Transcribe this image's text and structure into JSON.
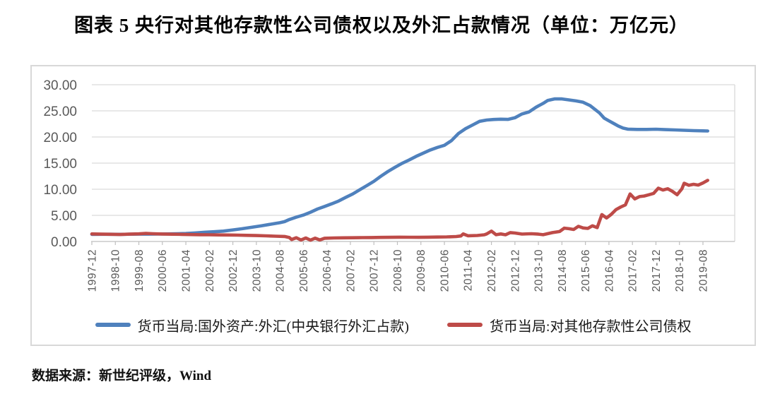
{
  "title": "图表 5  央行对其他存款性公司债权以及外汇占款情况（单位：万亿元）",
  "source_note": "数据来源：新世纪评级，Wind",
  "legend": {
    "items": [
      {
        "label": "货币当局:国外资产:外汇(中央银行外汇占款)",
        "color": "#4F81BD"
      },
      {
        "label": "货币当局:对其他存款性公司债权",
        "color": "#BE4B48"
      }
    ]
  },
  "colors": {
    "grid": "#d9d9d9",
    "axis": "#bfbfbf",
    "tick_text": "#595959",
    "series_fx": "#4F81BD",
    "series_claims": "#BE4B48",
    "border": "#d8d8d8"
  },
  "chart_data": {
    "type": "line",
    "title": "央行对其他存款性公司债权以及外汇占款情况",
    "unit": "万亿元",
    "xlabel": "",
    "ylabel": "",
    "ylim": [
      0,
      30
    ],
    "grid": true,
    "legend_position": "bottom",
    "y_ticks": [
      "30.00",
      "25.00",
      "20.00",
      "15.00",
      "10.00",
      "5.00",
      "0.00"
    ],
    "x_tick_labels": [
      "1997-12",
      "1998-10",
      "1999-08",
      "2000-06",
      "2001-04",
      "2002-02",
      "2002-12",
      "2003-10",
      "2004-08",
      "2005-06",
      "2006-04",
      "2007-02",
      "2007-12",
      "2008-10",
      "2009-08",
      "2010-06",
      "2011-04",
      "2012-02",
      "2012-12",
      "2013-10",
      "2014-08",
      "2015-06",
      "2016-04",
      "2017-02",
      "2017-12",
      "2018-10",
      "2019-08"
    ],
    "x_range_months": [
      "1997-12",
      "2019-10"
    ],
    "series": [
      {
        "name": "货币当局:国外资产:外汇(中央银行外汇占款)",
        "color": "#4F81BD",
        "points": [
          [
            "1997-12",
            1.36
          ],
          [
            "1998-04",
            1.38
          ],
          [
            "1998-08",
            1.39
          ],
          [
            "1998-12",
            1.37
          ],
          [
            "1999-04",
            1.39
          ],
          [
            "1999-08",
            1.4
          ],
          [
            "1999-12",
            1.41
          ],
          [
            "2000-04",
            1.43
          ],
          [
            "2000-08",
            1.45
          ],
          [
            "2000-12",
            1.47
          ],
          [
            "2001-04",
            1.53
          ],
          [
            "2001-08",
            1.63
          ],
          [
            "2001-12",
            1.77
          ],
          [
            "2002-04",
            1.87
          ],
          [
            "2002-08",
            1.99
          ],
          [
            "2002-12",
            2.21
          ],
          [
            "2003-04",
            2.45
          ],
          [
            "2003-08",
            2.72
          ],
          [
            "2003-12",
            2.98
          ],
          [
            "2004-04",
            3.3
          ],
          [
            "2004-08",
            3.6
          ],
          [
            "2004-10",
            3.8
          ],
          [
            "2004-12",
            4.2
          ],
          [
            "2005-03",
            4.65
          ],
          [
            "2005-06",
            5.05
          ],
          [
            "2005-09",
            5.6
          ],
          [
            "2005-12",
            6.21
          ],
          [
            "2006-03",
            6.7
          ],
          [
            "2006-06",
            7.2
          ],
          [
            "2006-09",
            7.75
          ],
          [
            "2006-12",
            8.43
          ],
          [
            "2007-03",
            9.1
          ],
          [
            "2007-06",
            9.9
          ],
          [
            "2007-09",
            10.7
          ],
          [
            "2007-12",
            11.52
          ],
          [
            "2008-03",
            12.5
          ],
          [
            "2008-06",
            13.4
          ],
          [
            "2008-09",
            14.2
          ],
          [
            "2008-12",
            14.96
          ],
          [
            "2009-03",
            15.6
          ],
          [
            "2009-06",
            16.3
          ],
          [
            "2009-09",
            16.9
          ],
          [
            "2009-12",
            17.52
          ],
          [
            "2010-03",
            18.0
          ],
          [
            "2010-06",
            18.4
          ],
          [
            "2010-09",
            19.3
          ],
          [
            "2010-12",
            20.68
          ],
          [
            "2011-03",
            21.6
          ],
          [
            "2011-06",
            22.3
          ],
          [
            "2011-09",
            23.0
          ],
          [
            "2011-12",
            23.24
          ],
          [
            "2012-03",
            23.35
          ],
          [
            "2012-06",
            23.4
          ],
          [
            "2012-09",
            23.37
          ],
          [
            "2012-12",
            23.67
          ],
          [
            "2013-03",
            24.4
          ],
          [
            "2013-06",
            24.8
          ],
          [
            "2013-09",
            25.7
          ],
          [
            "2013-12",
            26.43
          ],
          [
            "2014-02",
            27.0
          ],
          [
            "2014-05",
            27.3
          ],
          [
            "2014-08",
            27.28
          ],
          [
            "2014-11",
            27.1
          ],
          [
            "2015-02",
            26.9
          ],
          [
            "2015-05",
            26.65
          ],
          [
            "2015-08",
            26.0
          ],
          [
            "2015-10",
            25.3
          ],
          [
            "2015-12",
            24.6
          ],
          [
            "2016-02",
            23.6
          ],
          [
            "2016-04",
            23.1
          ],
          [
            "2016-06",
            22.6
          ],
          [
            "2016-08",
            22.1
          ],
          [
            "2016-10",
            21.7
          ],
          [
            "2016-12",
            21.5
          ],
          [
            "2017-04",
            21.45
          ],
          [
            "2017-08",
            21.45
          ],
          [
            "2017-12",
            21.48
          ],
          [
            "2018-04",
            21.4
          ],
          [
            "2018-08",
            21.35
          ],
          [
            "2018-12",
            21.28
          ],
          [
            "2019-04",
            21.22
          ],
          [
            "2019-08",
            21.18
          ],
          [
            "2019-10",
            21.15
          ]
        ]
      },
      {
        "name": "货币当局:对其他存款性公司债权",
        "color": "#BE4B48",
        "points": [
          [
            "1997-12",
            1.44
          ],
          [
            "1998-04",
            1.41
          ],
          [
            "1998-08",
            1.38
          ],
          [
            "1998-12",
            1.34
          ],
          [
            "1999-04",
            1.4
          ],
          [
            "1999-08",
            1.46
          ],
          [
            "1999-11",
            1.55
          ],
          [
            "2000-02",
            1.48
          ],
          [
            "2000-06",
            1.43
          ],
          [
            "2000-10",
            1.39
          ],
          [
            "2001-02",
            1.36
          ],
          [
            "2001-06",
            1.33
          ],
          [
            "2001-10",
            1.3
          ],
          [
            "2002-02",
            1.28
          ],
          [
            "2002-06",
            1.26
          ],
          [
            "2002-10",
            1.24
          ],
          [
            "2003-02",
            1.22
          ],
          [
            "2003-06",
            1.18
          ],
          [
            "2003-10",
            1.13
          ],
          [
            "2004-02",
            1.08
          ],
          [
            "2004-06",
            1.02
          ],
          [
            "2004-10",
            0.96
          ],
          [
            "2004-12",
            0.75
          ],
          [
            "2005-01",
            0.38
          ],
          [
            "2005-03",
            0.72
          ],
          [
            "2005-05",
            0.28
          ],
          [
            "2005-07",
            0.68
          ],
          [
            "2005-09",
            0.26
          ],
          [
            "2005-11",
            0.63
          ],
          [
            "2006-01",
            0.3
          ],
          [
            "2006-03",
            0.62
          ],
          [
            "2006-07",
            0.68
          ],
          [
            "2006-11",
            0.7
          ],
          [
            "2007-03",
            0.72
          ],
          [
            "2007-07",
            0.74
          ],
          [
            "2007-11",
            0.76
          ],
          [
            "2008-03",
            0.78
          ],
          [
            "2008-07",
            0.8
          ],
          [
            "2008-11",
            0.82
          ],
          [
            "2009-03",
            0.81
          ],
          [
            "2009-07",
            0.8
          ],
          [
            "2009-11",
            0.82
          ],
          [
            "2010-03",
            0.85
          ],
          [
            "2010-07",
            0.88
          ],
          [
            "2010-11",
            0.95
          ],
          [
            "2011-01",
            1.05
          ],
          [
            "2011-02",
            1.45
          ],
          [
            "2011-04",
            1.1
          ],
          [
            "2011-08",
            1.15
          ],
          [
            "2011-11",
            1.28
          ],
          [
            "2011-12",
            1.45
          ],
          [
            "2012-02",
            1.98
          ],
          [
            "2012-04",
            1.3
          ],
          [
            "2012-06",
            1.45
          ],
          [
            "2012-08",
            1.28
          ],
          [
            "2012-10",
            1.7
          ],
          [
            "2012-12",
            1.62
          ],
          [
            "2013-03",
            1.42
          ],
          [
            "2013-07",
            1.48
          ],
          [
            "2013-10",
            1.4
          ],
          [
            "2013-12",
            1.3
          ],
          [
            "2014-04",
            1.7
          ],
          [
            "2014-07",
            1.9
          ],
          [
            "2014-09",
            2.55
          ],
          [
            "2014-11",
            2.45
          ],
          [
            "2015-01",
            2.3
          ],
          [
            "2015-03",
            2.9
          ],
          [
            "2015-05",
            2.6
          ],
          [
            "2015-07",
            2.5
          ],
          [
            "2015-09",
            3.0
          ],
          [
            "2015-11",
            2.65
          ],
          [
            "2016-01",
            5.15
          ],
          [
            "2016-03",
            4.5
          ],
          [
            "2016-05",
            5.2
          ],
          [
            "2016-07",
            6.1
          ],
          [
            "2016-09",
            6.6
          ],
          [
            "2016-11",
            7.0
          ],
          [
            "2017-01",
            9.1
          ],
          [
            "2017-03",
            8.15
          ],
          [
            "2017-05",
            8.6
          ],
          [
            "2017-07",
            8.7
          ],
          [
            "2017-09",
            8.95
          ],
          [
            "2017-11",
            9.2
          ],
          [
            "2018-01",
            10.2
          ],
          [
            "2018-03",
            9.85
          ],
          [
            "2018-05",
            10.1
          ],
          [
            "2018-07",
            9.6
          ],
          [
            "2018-09",
            8.95
          ],
          [
            "2018-11",
            10.05
          ],
          [
            "2018-12",
            11.15
          ],
          [
            "2019-02",
            10.75
          ],
          [
            "2019-04",
            10.95
          ],
          [
            "2019-06",
            10.8
          ],
          [
            "2019-08",
            11.2
          ],
          [
            "2019-10",
            11.7
          ]
        ]
      }
    ]
  }
}
